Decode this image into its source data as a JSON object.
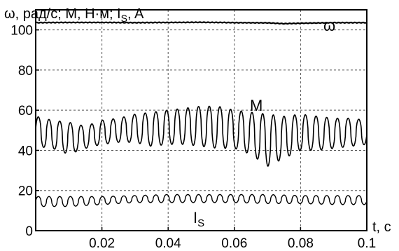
{
  "chart_data": {
    "type": "line",
    "ylabel": "ω, рад/с; M, Н·м; I",
    "ylabel_sub": "S",
    "ylabel_tail": ", A",
    "xlabel": "t, c",
    "xlim": [
      0,
      0.1
    ],
    "ylim": [
      0,
      110
    ],
    "x_ticks": [
      0.02,
      0.04,
      0.06,
      0.08,
      0.1
    ],
    "x_tick_labels": [
      "0.02",
      "0.04",
      "0.06",
      "0.08",
      "0.1"
    ],
    "y_ticks": [
      0,
      20,
      40,
      60,
      80,
      100
    ],
    "y_tick_labels": [
      "0",
      "20",
      "40",
      "60",
      "80",
      "100"
    ],
    "grid": true,
    "series": [
      {
        "name": "ω",
        "label_parts": [
          "ω"
        ],
        "x": [
          0,
          0.01,
          0.02,
          0.03,
          0.04,
          0.05,
          0.06,
          0.07,
          0.075,
          0.08,
          0.09,
          0.1
        ],
        "y": [
          103.6,
          103.7,
          103.7,
          103.6,
          103.7,
          103.8,
          103.6,
          103.5,
          103.1,
          103.3,
          103.6,
          103.6
        ]
      },
      {
        "name": "M",
        "label_parts": [
          "M"
        ],
        "x": [
          0,
          0.005,
          0.01,
          0.015,
          0.02,
          0.025,
          0.03,
          0.035,
          0.04,
          0.045,
          0.05,
          0.055,
          0.06,
          0.065,
          0.07,
          0.075,
          0.08,
          0.085,
          0.09,
          0.095,
          0.1
        ],
        "max": [
          57,
          55,
          54,
          52,
          55,
          56,
          58,
          59,
          60,
          61,
          62,
          62,
          60,
          59,
          58,
          57,
          58,
          57,
          56,
          56,
          55
        ],
        "min": [
          42,
          41,
          38,
          41,
          43,
          44,
          44,
          42,
          43,
          43,
          42,
          41,
          41,
          38,
          32,
          36,
          40,
          40,
          41,
          42,
          43
        ]
      },
      {
        "name": "IS",
        "label_parts": [
          "I",
          "S"
        ],
        "x": [
          0,
          0.01,
          0.02,
          0.03,
          0.04,
          0.05,
          0.06,
          0.07,
          0.08,
          0.09,
          0.1
        ],
        "max": [
          17,
          17,
          17,
          17.5,
          18,
          18,
          18,
          18,
          17.5,
          17.5,
          17.5
        ],
        "min": [
          12,
          12,
          13,
          14,
          14,
          14,
          14,
          13.5,
          13.5,
          13,
          13
        ]
      }
    ]
  }
}
